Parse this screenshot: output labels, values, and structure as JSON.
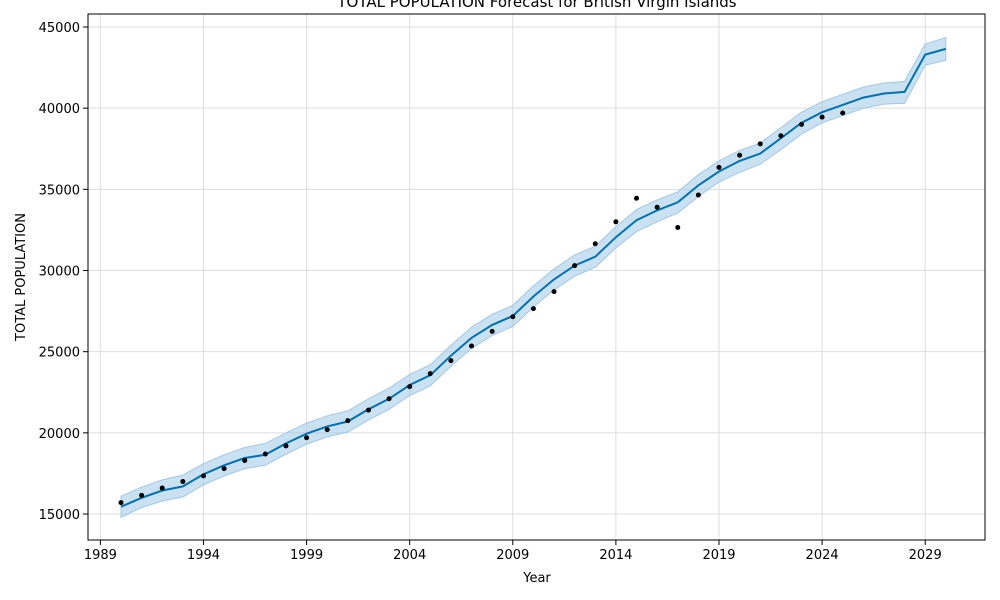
{
  "chart_data": {
    "type": "line",
    "title": "TOTAL POPULATION Forecast for British Virgin Islands",
    "xlabel": "Year",
    "ylabel": "TOTAL POPULATION",
    "xlim": [
      1988.4,
      2031.9
    ],
    "ylim": [
      13400,
      45800
    ],
    "x_ticks": [
      1989,
      1994,
      1999,
      2004,
      2009,
      2014,
      2019,
      2024,
      2029
    ],
    "y_ticks": [
      15000,
      20000,
      25000,
      30000,
      35000,
      40000,
      45000
    ],
    "grid": true,
    "colors": {
      "forecast": "#0072b2",
      "band": "#9fc8e8",
      "observed": "#000000",
      "grid": "#dddddd"
    },
    "observed": {
      "x": [
        1990,
        1991,
        1992,
        1993,
        1994,
        1995,
        1996,
        1997,
        1998,
        1999,
        2000,
        2001,
        2002,
        2003,
        2004,
        2005,
        2006,
        2007,
        2008,
        2009,
        2010,
        2011,
        2012,
        2013,
        2014,
        2015,
        2016,
        2017,
        2018,
        2019,
        2020,
        2021,
        2022,
        2023,
        2024,
        2025
      ],
      "y": [
        15700,
        16150,
        16600,
        17000,
        17350,
        17800,
        18300,
        18700,
        19200,
        19700,
        20200,
        20750,
        21400,
        22100,
        22850,
        23650,
        24450,
        25350,
        26250,
        27150,
        27650,
        28700,
        30300,
        31650,
        33000,
        34450,
        33900,
        32650,
        34650,
        36350,
        37100,
        37800,
        38300,
        39000,
        39450,
        39700
      ]
    },
    "forecast": {
      "x": [
        1990,
        1991,
        1992,
        1993,
        1994,
        1995,
        1996,
        1997,
        1998,
        1999,
        2000,
        2001,
        2002,
        2003,
        2004,
        2005,
        2006,
        2007,
        2008,
        2009,
        2010,
        2011,
        2012,
        2013,
        2014,
        2015,
        2016,
        2017,
        2018,
        2019,
        2020,
        2021,
        2022,
        2023,
        2024,
        2025,
        2026,
        2027,
        2028,
        2029,
        2030
      ],
      "y": [
        15450,
        16000,
        16450,
        16700,
        17450,
        18000,
        18450,
        18650,
        19350,
        19950,
        20400,
        20700,
        21450,
        22100,
        22950,
        23550,
        24750,
        25850,
        26650,
        27200,
        28400,
        29450,
        30300,
        30850,
        32050,
        33100,
        33700,
        34200,
        35250,
        36100,
        36750,
        37200,
        38150,
        39100,
        39750,
        40200,
        40650,
        40900,
        41000,
        43300,
        43650
      ],
      "lower": [
        14800,
        15400,
        15800,
        16050,
        16800,
        17350,
        17800,
        18000,
        18700,
        19300,
        19750,
        20050,
        20800,
        21450,
        22300,
        22900,
        24100,
        25200,
        26000,
        26550,
        27750,
        28800,
        29650,
        30200,
        31400,
        32400,
        33000,
        33550,
        34550,
        35450,
        36050,
        36550,
        37450,
        38400,
        39100,
        39550,
        40000,
        40250,
        40300,
        42650,
        42950
      ],
      "upper": [
        16100,
        16650,
        17100,
        17400,
        18100,
        18650,
        19100,
        19350,
        20000,
        20600,
        21050,
        21350,
        22100,
        22750,
        23600,
        24200,
        25400,
        26500,
        27300,
        27850,
        29050,
        30100,
        30950,
        31500,
        32700,
        33750,
        34350,
        34850,
        35900,
        36750,
        37400,
        37850,
        38800,
        39750,
        40400,
        40850,
        41300,
        41550,
        41650,
        43950,
        44350
      ]
    }
  }
}
